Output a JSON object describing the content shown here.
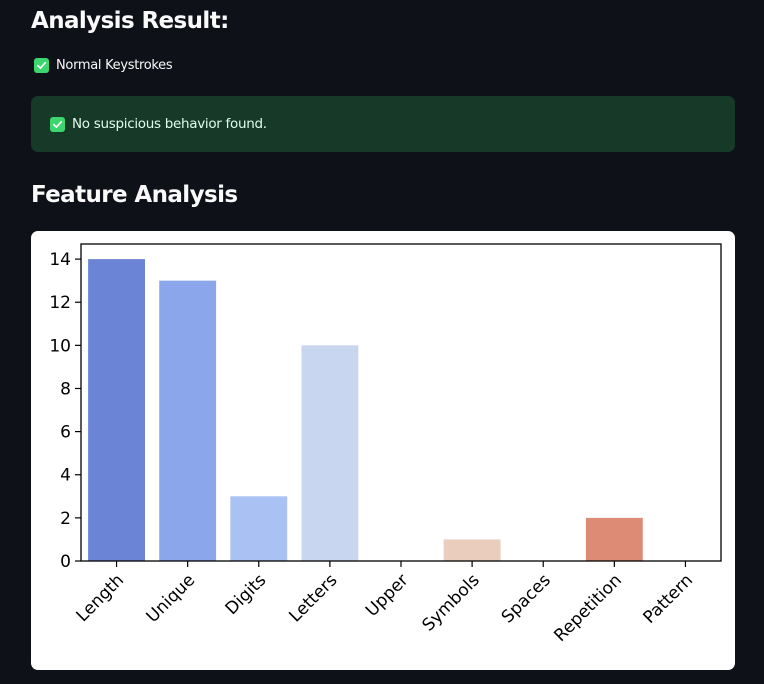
{
  "page": {
    "result_heading": "Analysis Result:",
    "status_label": "Normal Keystrokes",
    "alert_message": "No suspicious behavior found.",
    "feature_heading": "Feature Analysis"
  },
  "colors": {
    "background": "#0e1117",
    "success_check": "#3dd56d",
    "alert_bg": "#173928",
    "alert_text": "#dffde9"
  },
  "chart_data": {
    "type": "bar",
    "categories": [
      "Length",
      "Unique",
      "Digits",
      "Letters",
      "Upper",
      "Symbols",
      "Spaces",
      "Repetition",
      "Pattern"
    ],
    "values": [
      14,
      13,
      3,
      10,
      0,
      1,
      0,
      2,
      0
    ],
    "colors": [
      "#6b84d6",
      "#8ba6ea",
      "#aac1f3",
      "#c8d6f0",
      "#dddcdc",
      "#ebcdbe",
      "#f2bba3",
      "#de8b76",
      "#c84b40"
    ],
    "title": "",
    "xlabel": "",
    "ylabel": "",
    "ylim": [
      0,
      14.7
    ],
    "yticks": [
      0,
      2,
      4,
      6,
      8,
      10,
      12,
      14
    ],
    "grid": false,
    "legend": "none"
  }
}
